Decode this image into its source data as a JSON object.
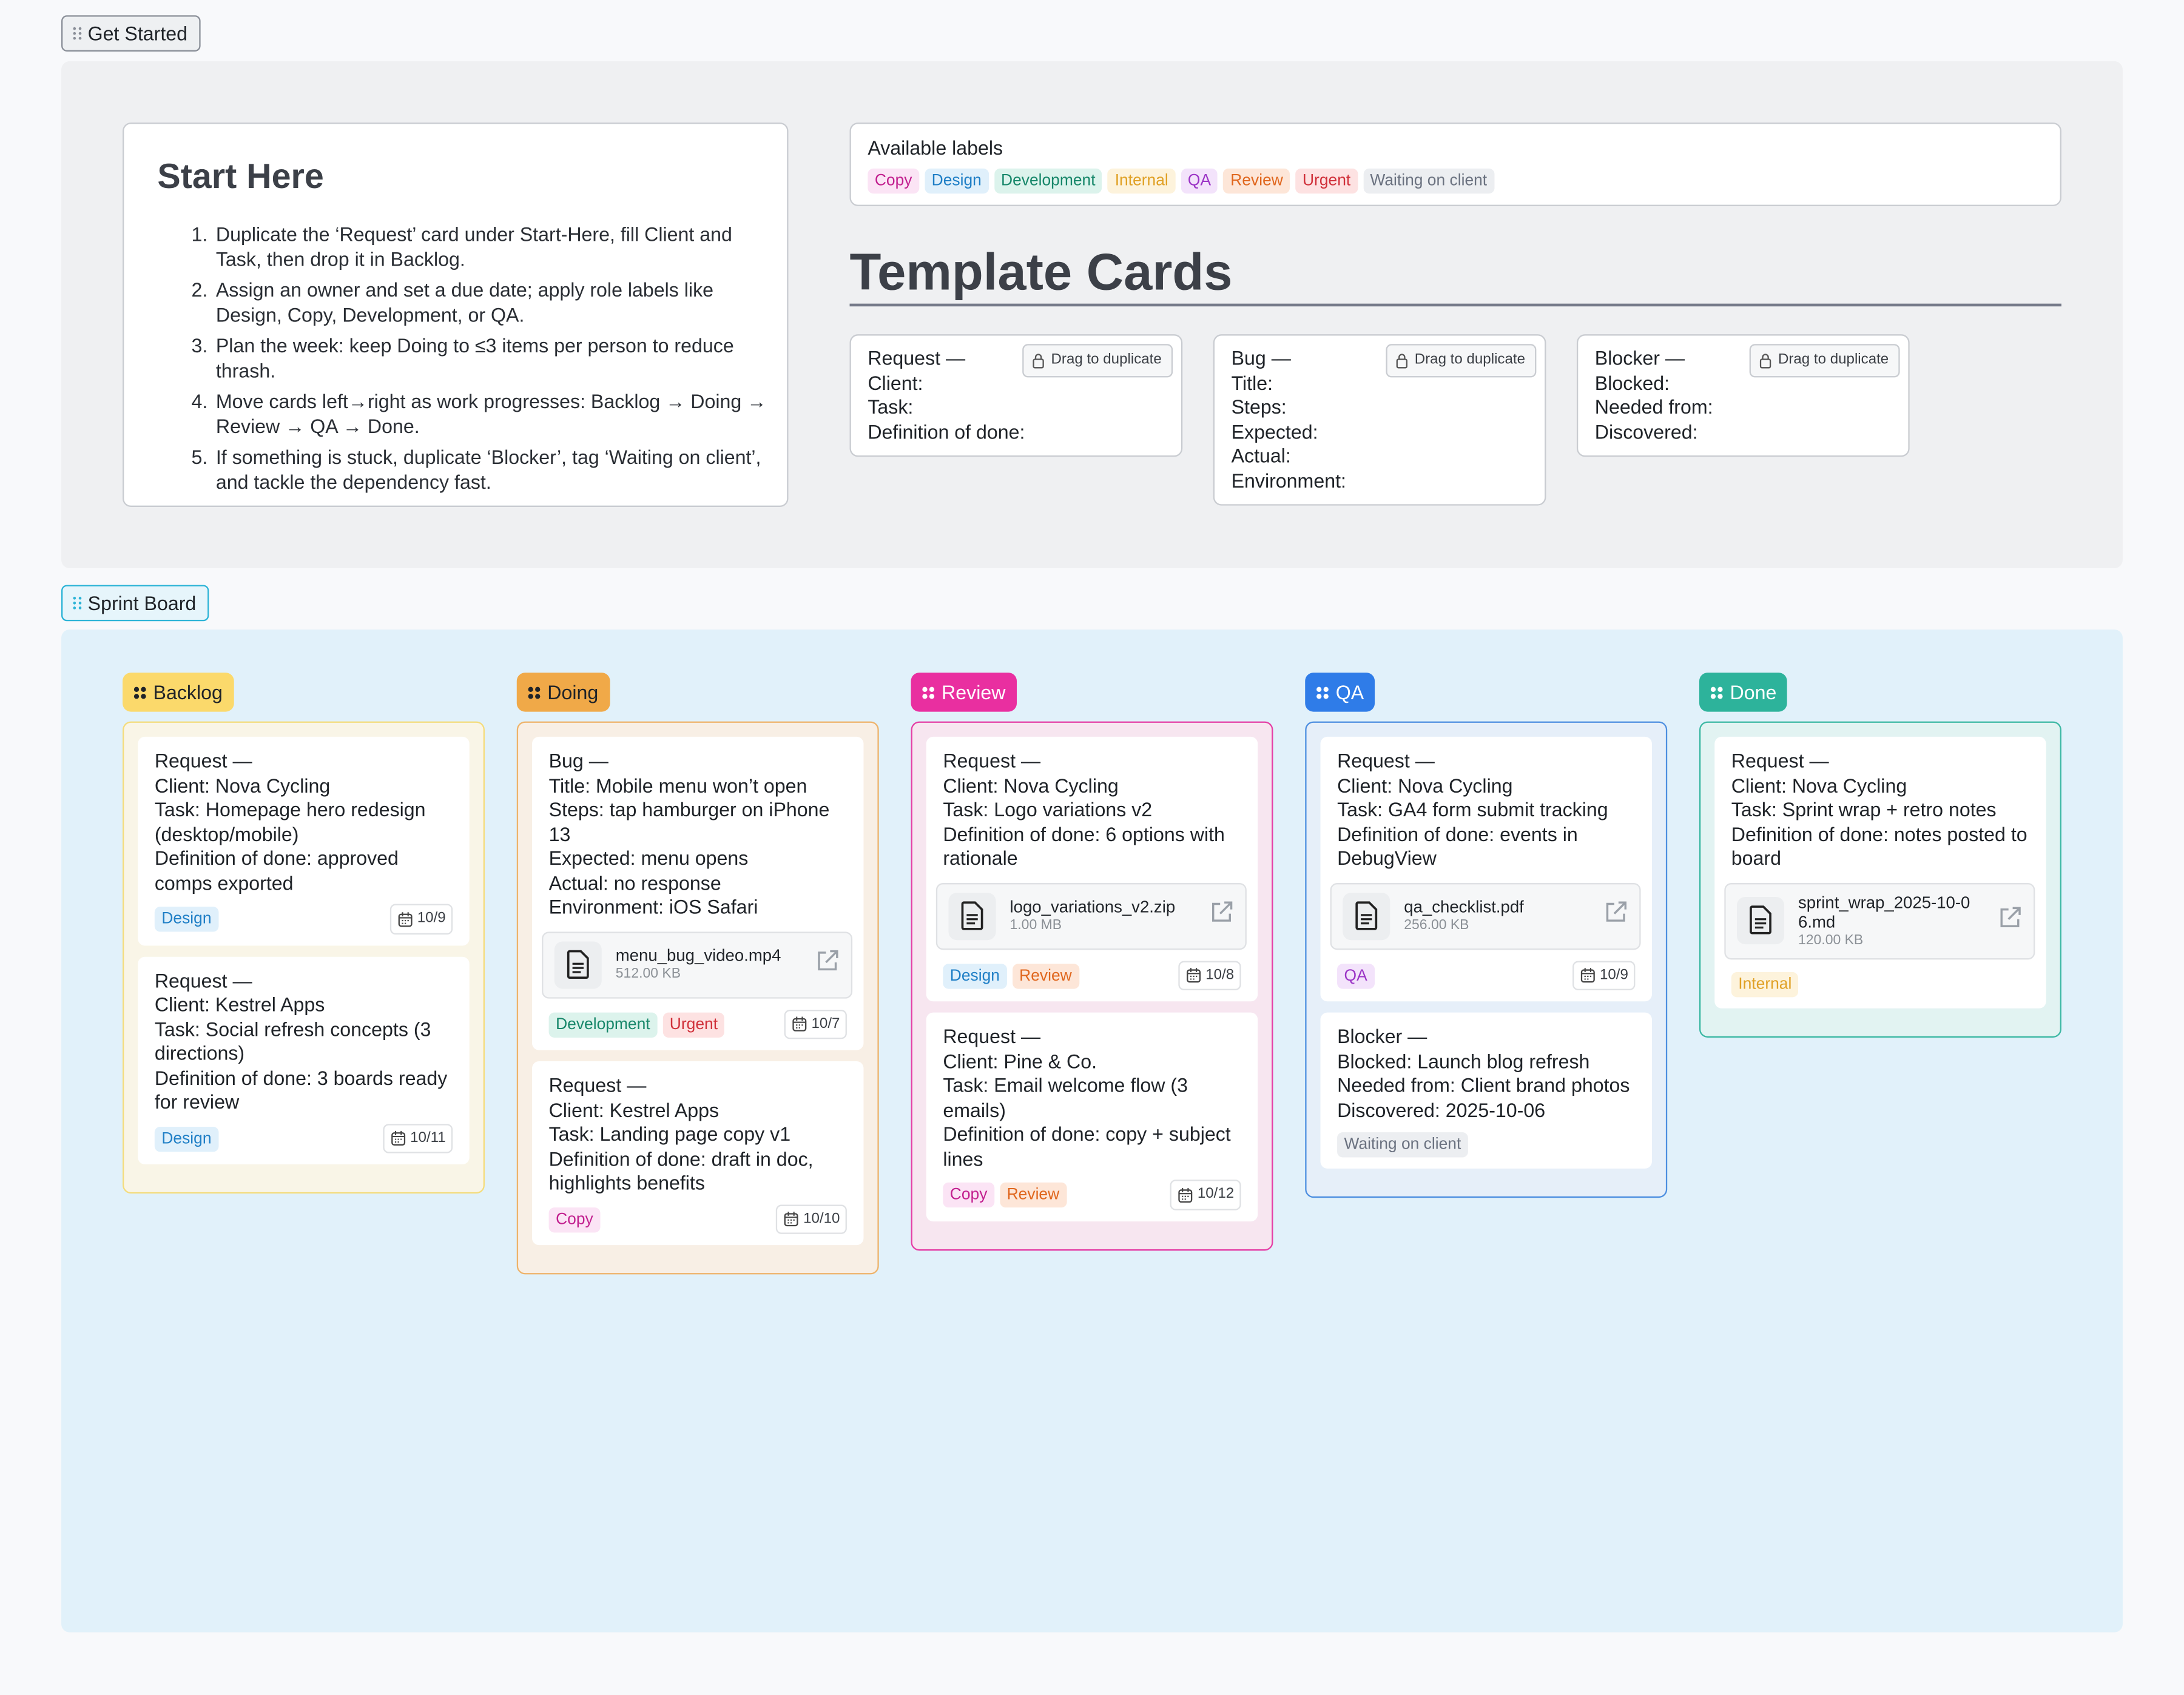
{
  "sections": {
    "get_started": "Get Started",
    "sprint_board": "Sprint Board"
  },
  "start_here": {
    "title": "Start Here",
    "steps": [
      "Duplicate the ‘Request’ card under Start-Here, fill Client and Task, then drop it in Backlog.",
      "Assign an owner and set a due date; apply role labels like Design, Copy, Development, or QA.",
      "Plan the week: keep Doing to ≤3 items per person to reduce thrash.",
      "Move cards left→right as work progresses: Backlog → Doing → Review → QA → Done.",
      "If something is stuck, duplicate ‘Blocker’, tag ‘Waiting on client’, and tackle the dependency fast."
    ]
  },
  "labels": {
    "title": "Available labels",
    "items": [
      "Copy",
      "Design",
      "Development",
      "Internal",
      "QA",
      "Review",
      "Urgent",
      "Waiting on client"
    ]
  },
  "templates": {
    "title": "Template Cards",
    "cards": [
      {
        "action": "Drag to duplicate",
        "lines": [
          "Request —",
          "Client:",
          "Task:",
          "Definition of done:"
        ]
      },
      {
        "action": "Drag to duplicate",
        "lines": [
          "Bug —",
          "Title:",
          "Steps:",
          "Expected:",
          "Actual:",
          "Environment:"
        ]
      },
      {
        "action": "Drag to duplicate",
        "lines": [
          "Blocker —",
          "Blocked:",
          "Needed from:",
          "Discovered:"
        ]
      }
    ]
  },
  "columns": [
    {
      "name": "Backlog",
      "cards": [
        {
          "lines": [
            "Request —",
            "Client: Nova Cycling",
            "Task: Homepage hero redesign (desktop/mobile)",
            "Definition of done: approved comps exported"
          ],
          "labels": [
            "Design"
          ],
          "due": "10/9"
        },
        {
          "lines": [
            "Request —",
            "Client: Kestrel Apps",
            "Task: Social refresh concepts (3 directions)",
            "Definition of done: 3 boards ready for review"
          ],
          "labels": [
            "Design"
          ],
          "due": "10/11"
        }
      ]
    },
    {
      "name": "Doing",
      "cards": [
        {
          "lines": [
            "Bug —",
            "Title: Mobile menu won’t open",
            "Steps: tap hamburger on iPhone 13",
            "Expected: menu opens",
            "Actual: no response",
            "Environment: iOS Safari"
          ],
          "attachment": {
            "name": "menu_bug_video.mp4",
            "size": "512.00 KB"
          },
          "labels": [
            "Development",
            "Urgent"
          ],
          "due": "10/7"
        },
        {
          "lines": [
            "Request —",
            "Client: Kestrel Apps",
            "Task: Landing page copy v1",
            "Definition of done: draft in doc, highlights benefits"
          ],
          "labels": [
            "Copy"
          ],
          "due": "10/10"
        }
      ]
    },
    {
      "name": "Review",
      "cards": [
        {
          "lines": [
            "Request —",
            "Client: Nova Cycling",
            "Task: Logo variations v2",
            "Definition of done: 6 options with rationale"
          ],
          "attachment": {
            "name": "logo_variations_v2.zip",
            "size": "1.00 MB"
          },
          "labels": [
            "Design",
            "Review"
          ],
          "due": "10/8"
        },
        {
          "lines": [
            "Request —",
            "Client: Pine & Co.",
            "Task: Email welcome flow (3 emails)",
            "Definition of done: copy + subject lines"
          ],
          "labels": [
            "Copy",
            "Review"
          ],
          "due": "10/12"
        }
      ]
    },
    {
      "name": "QA",
      "cards": [
        {
          "lines": [
            "Request —",
            "Client: Nova Cycling",
            "Task: GA4 form submit tracking",
            "Definition of done: events in DebugView"
          ],
          "attachment": {
            "name": "qa_checklist.pdf",
            "size": "256.00 KB"
          },
          "labels": [
            "QA"
          ],
          "due": "10/9"
        },
        {
          "lines": [
            "Blocker —",
            "Blocked: Launch blog refresh",
            "Needed from: Client brand photos",
            "Discovered: 2025-10-06"
          ],
          "labels": [
            "Waiting on client"
          ]
        }
      ]
    },
    {
      "name": "Done",
      "cards": [
        {
          "lines": [
            "Request —",
            "Client: Nova Cycling",
            "Task: Sprint wrap + retro notes",
            "Definition of done: notes posted to board"
          ],
          "attachment": {
            "name": "sprint_wrap_2025-10-06.md",
            "size": "120.00 KB"
          },
          "labels": [
            "Internal"
          ]
        }
      ]
    }
  ]
}
